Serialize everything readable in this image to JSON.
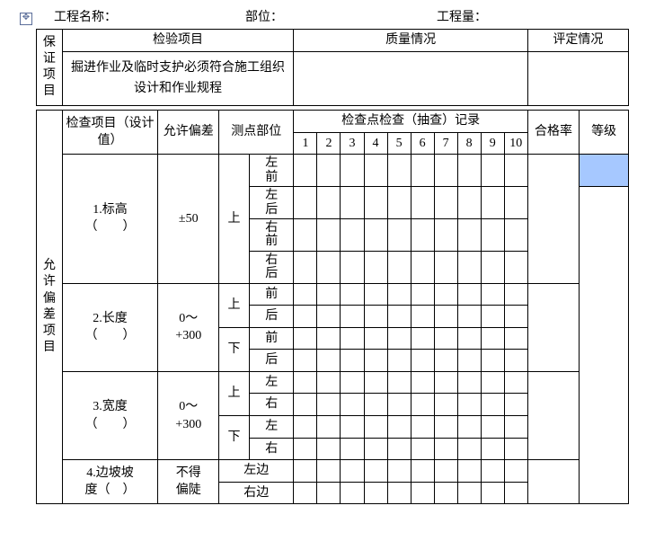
{
  "header": {
    "project_name_label": "工程名称：",
    "part_label": "部位：",
    "quantity_label": "工程量："
  },
  "section1": {
    "side_label": "保证项目",
    "col_inspect": "检验项目",
    "col_quality": "质量情况",
    "col_eval": "评定情况",
    "desc_line1": "掘进作业及临时支护必须符合施工组织",
    "desc_line2": "设计和作业规程"
  },
  "section2": {
    "side_label": "允许偏差项目",
    "col_item": "检查项目（设计值）",
    "col_tolerance": "允许偏差",
    "col_point": "测点部位",
    "col_record": "检查点检查（抽查）记录",
    "col_pass": "合格率",
    "col_grade": "等级",
    "nums": [
      "1",
      "2",
      "3",
      "4",
      "5",
      "6",
      "7",
      "8",
      "9",
      "10"
    ],
    "rows": [
      {
        "name_l1": "1.标高",
        "name_l2": "（　　）",
        "tol": "±50",
        "groups": [
          {
            "g": "上",
            "subs": [
              "左前",
              "左后",
              "右前",
              "右后"
            ]
          }
        ]
      },
      {
        "name_l1": "2.长度",
        "name_l2": "（　　）",
        "tol_l1": "0～",
        "tol_l2": "+300",
        "groups": [
          {
            "g": "上",
            "subs": [
              "前",
              "后"
            ]
          },
          {
            "g": "下",
            "subs": [
              "前",
              "后"
            ]
          }
        ]
      },
      {
        "name_l1": "3.宽度",
        "name_l2": "（　　）",
        "tol_l1": "0～",
        "tol_l2": "+300",
        "groups": [
          {
            "g": "上",
            "subs": [
              "左",
              "右"
            ]
          },
          {
            "g": "下",
            "subs": [
              "左",
              "右"
            ]
          }
        ]
      },
      {
        "name_l1": "4.边坡坡",
        "name_l2": "度（　）",
        "tol_l1": "不得",
        "tol_l2": "偏陡",
        "groups": [
          {
            "g": "",
            "subs": [
              "左边",
              "右边"
            ]
          }
        ]
      }
    ]
  },
  "colors": {
    "highlight": "#a6c8ff",
    "border": "#000000",
    "text": "#000000"
  }
}
